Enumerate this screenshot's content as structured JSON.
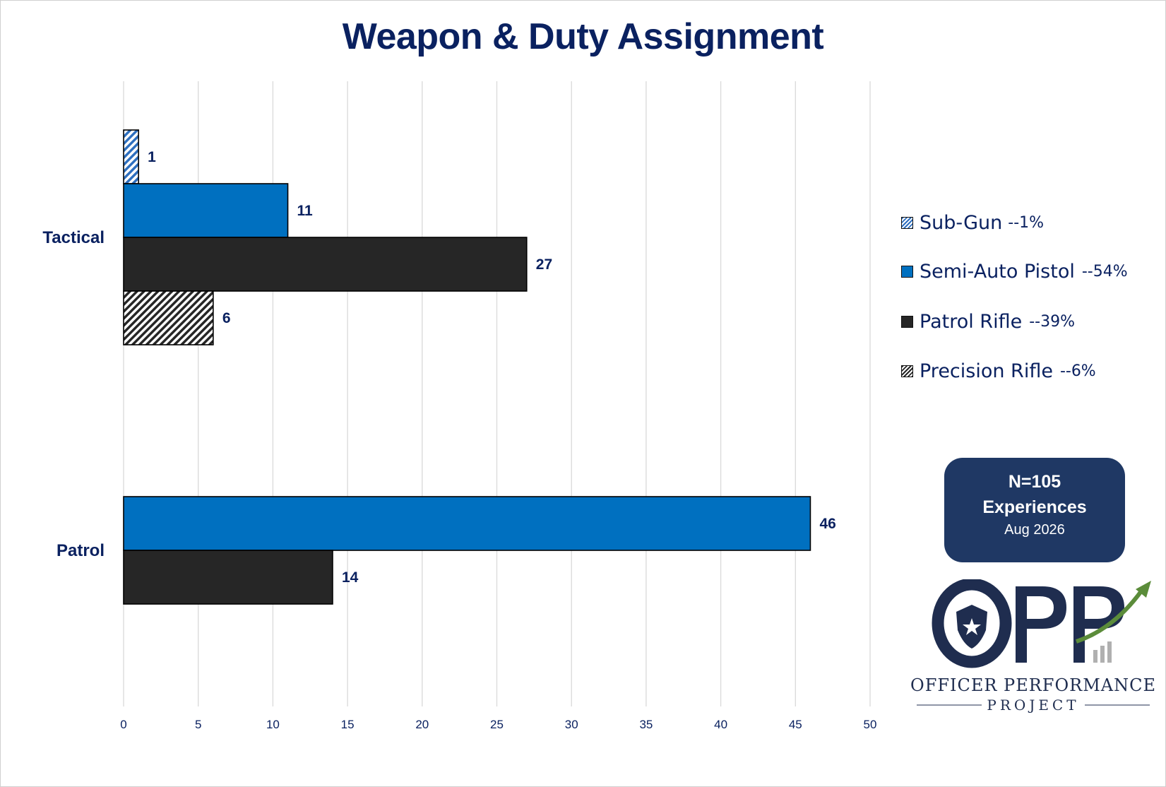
{
  "chart_data": {
    "type": "bar",
    "orientation": "horizontal",
    "title": "Weapon & Duty Assignment",
    "categories": [
      "Tactical",
      "Patrol"
    ],
    "series": [
      {
        "name": "Sub-Gun",
        "legend_pct": "--1%",
        "color": "#2e6fbf",
        "pattern": "hatch-blue",
        "values": [
          1,
          null
        ]
      },
      {
        "name": "Semi-Auto Pistol",
        "legend_pct": "--54%",
        "color": "#0070c0",
        "pattern": "solid",
        "values": [
          11,
          46
        ]
      },
      {
        "name": "Patrol Rifle",
        "legend_pct": "--39%",
        "color": "#262626",
        "pattern": "solid",
        "values": [
          27,
          14
        ]
      },
      {
        "name": "Precision Rifle",
        "legend_pct": "--6%",
        "color": "#262626",
        "pattern": "hatch-black",
        "values": [
          6,
          null
        ]
      }
    ],
    "xlim": [
      0,
      50
    ],
    "xticks": [
      0,
      5,
      10,
      15,
      20,
      25,
      30,
      35,
      40,
      45,
      50
    ],
    "grid": "vertical",
    "legend_position": "right",
    "data_labels": true
  },
  "info_box": {
    "n": "N=105",
    "experiences": "Experiences",
    "date": "Aug 2026"
  },
  "logo": {
    "line1": "OFFICER PERFORMANCE",
    "line2": "PROJECT",
    "mark": "OPP",
    "icon": "shield-star-icon"
  },
  "colors": {
    "title": "#0a2160",
    "info_box_bg": "#1f3864",
    "arrow": "#5b8c3a"
  }
}
